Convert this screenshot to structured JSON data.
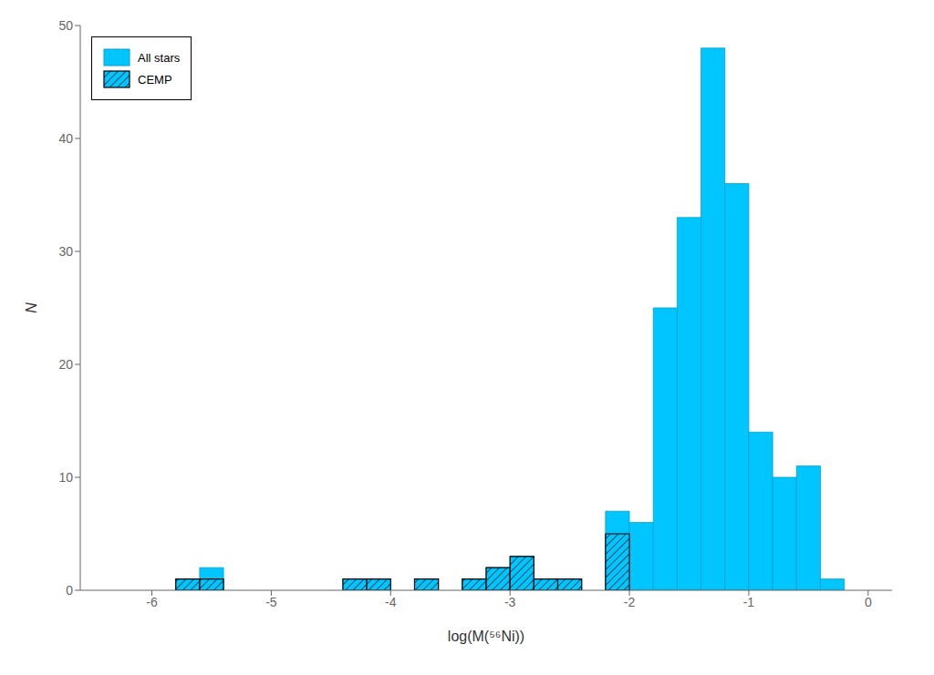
{
  "chart_data": {
    "type": "histogram",
    "x_label": "log(M(⁵⁶Ni))",
    "y_label": "N",
    "xlim": [
      -6.6,
      0.2
    ],
    "ylim": [
      0,
      50
    ],
    "xticks": [
      -6,
      -5,
      -4,
      -3,
      -2,
      -1,
      0
    ],
    "yticks": [
      0,
      10,
      20,
      30,
      40,
      50
    ],
    "bin_width": 0.2,
    "grid": false,
    "legend": "upper left",
    "series": [
      {
        "name": "All stars",
        "color": "#00C5FF",
        "x": [
          -5.8,
          -5.6,
          -4.4,
          -4.2,
          -4.0,
          -3.8,
          -3.4,
          -3.2,
          -3.0,
          -2.8,
          -2.6,
          -2.2,
          -2.0,
          -1.8,
          -1.6,
          -1.4,
          -1.2,
          -1.0,
          -0.8,
          -0.6,
          -0.4,
          -0.2
        ],
        "values": [
          1,
          2,
          1,
          1,
          0,
          1,
          1,
          2,
          3,
          1,
          1,
          7,
          6,
          25,
          33,
          48,
          36,
          14,
          10,
          11,
          1,
          0
        ]
      },
      {
        "name": "CEMP",
        "color": "#00C5FF",
        "x": [
          -5.8,
          -5.6,
          -4.4,
          -4.2,
          -4.0,
          -3.8,
          -3.4,
          -3.2,
          -3.0,
          -2.8,
          -2.6,
          -2.2
        ],
        "values": [
          1,
          1,
          1,
          1,
          0,
          1,
          1,
          2,
          3,
          1,
          1,
          5
        ]
      }
    ]
  }
}
